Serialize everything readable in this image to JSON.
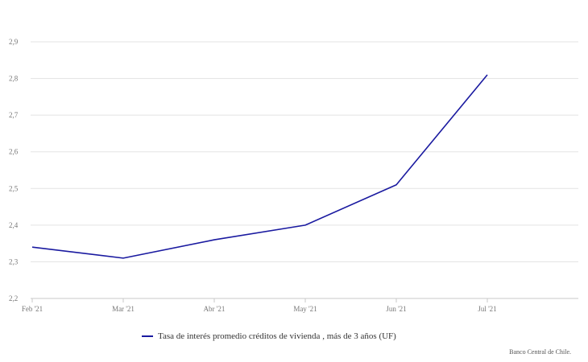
{
  "chart_data": {
    "type": "line",
    "categories": [
      "Feb '21",
      "Mar '21",
      "Abr '21",
      "May '21",
      "Jun '21",
      "Jul '21"
    ],
    "series": [
      {
        "name": "Tasa de interés promedio créditos de vivienda , más de 3 años (UF)",
        "values": [
          2.34,
          2.31,
          2.36,
          2.4,
          2.51,
          2.81
        ],
        "color": "#1a1aa0"
      }
    ],
    "yticks": [
      "2,2",
      "2,3",
      "2,4",
      "2,5",
      "2,6",
      "2,7",
      "2,8",
      "2,9"
    ],
    "ylim": [
      2.2,
      2.9
    ],
    "grid": true,
    "legend_position": "bottom-left"
  },
  "credit": "Banco Central de Chile."
}
